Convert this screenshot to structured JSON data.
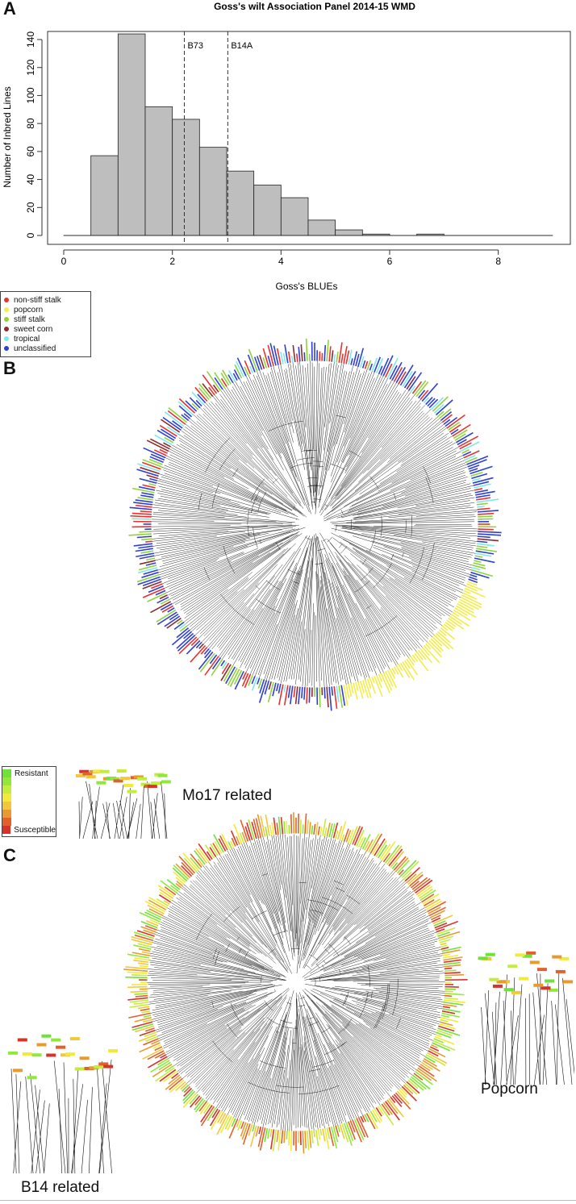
{
  "panels": {
    "a_letter": "A",
    "b_letter": "B",
    "c_letter": "C"
  },
  "chart_data": [
    {
      "type": "bar",
      "title": "Goss's wilt Association Panel 2014-15 WMD",
      "xlabel": "Goss's BLUEs",
      "ylabel": "Number of Inbred Lines",
      "bin_width": 0.5,
      "bins_start": [
        0,
        0.5,
        1.0,
        1.5,
        2.0,
        2.5,
        3.0,
        3.5,
        4.0,
        4.5,
        5.0,
        5.5,
        6.0,
        6.5,
        7.0,
        7.5,
        8.0,
        8.5
      ],
      "values": [
        0,
        57,
        144,
        92,
        83,
        63,
        46,
        36,
        27,
        11,
        4,
        1,
        0,
        1,
        0,
        0,
        0,
        0
      ],
      "xlim": [
        0,
        9
      ],
      "ylim": [
        0,
        150
      ],
      "xticks": [
        "0",
        "2",
        "4",
        "6",
        "8"
      ],
      "yticks": [
        "0",
        "20",
        "40",
        "60",
        "80",
        "100",
        "120",
        "140"
      ],
      "bar_color": "#bebebe",
      "reference_lines": [
        {
          "label": "B73",
          "x": 2.22
        },
        {
          "label": "B14A",
          "x": 3.02
        }
      ],
      "grid": false
    }
  ],
  "legend_b": {
    "items": [
      {
        "label": "non-stiff stalk",
        "color": "#e8322c"
      },
      {
        "label": "popcorn",
        "color": "#f2ec4a"
      },
      {
        "label": "stiff stalk",
        "color": "#8fd33a"
      },
      {
        "label": "sweet corn",
        "color": "#8b2d2d"
      },
      {
        "label": "tropical",
        "color": "#7fe8ee"
      },
      {
        "label": "unclassified",
        "color": "#2e3fd6"
      }
    ]
  },
  "legend_c": {
    "top_label": "Resistant",
    "bottom_label": "Susceptible",
    "scale_colors": [
      "#6fe23a",
      "#8fe83a",
      "#c4ec3a",
      "#f2ea3a",
      "#f2c83a",
      "#e89a2e",
      "#e2602a",
      "#d8322a"
    ]
  },
  "insets": {
    "mo17": "Mo17 related",
    "b14": "B14 related",
    "popcorn": "Popcorn"
  }
}
